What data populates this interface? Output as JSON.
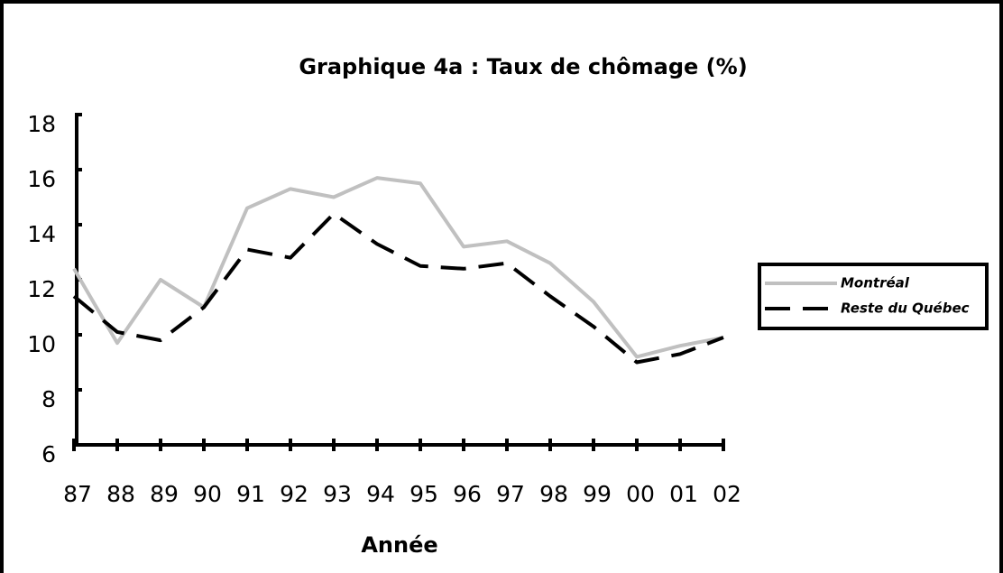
{
  "chart_data": {
    "type": "line",
    "title": "Graphique 4a : Taux de chômage (%)",
    "x_label": "Année",
    "categories": [
      "87",
      "88",
      "89",
      "90",
      "91",
      "92",
      "93",
      "94",
      "95",
      "96",
      "97",
      "98",
      "99",
      "00",
      "01",
      "02"
    ],
    "series": [
      {
        "name": "Montréal",
        "color": "#c0c0c0",
        "dashed": false,
        "values": [
          12.4,
          9.7,
          12.0,
          11.0,
          14.6,
          15.3,
          15.0,
          15.7,
          15.5,
          13.2,
          13.4,
          12.6,
          11.2,
          9.2,
          9.6,
          9.9
        ]
      },
      {
        "name": "Reste du Québec",
        "color": "#000000",
        "dashed": true,
        "values": [
          11.4,
          10.1,
          9.8,
          11.0,
          13.1,
          12.8,
          14.4,
          13.3,
          12.5,
          12.4,
          12.6,
          11.4,
          10.3,
          9.0,
          9.3,
          9.9
        ]
      }
    ],
    "ylim": [
      6,
      18
    ],
    "yticks": [
      6,
      8,
      10,
      12,
      14,
      16,
      18
    ],
    "legend": "right"
  }
}
